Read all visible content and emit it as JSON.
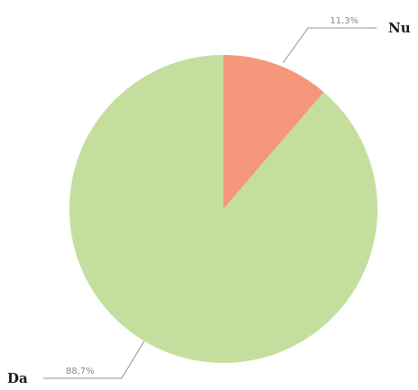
{
  "chart_data": {
    "type": "pie",
    "categories": [
      "Nu",
      "Da"
    ],
    "values": [
      11.3,
      88.7
    ],
    "value_labels": [
      "11,3%",
      "88,7%"
    ],
    "colors": [
      "#f4977a",
      "#c4df9d"
    ],
    "start_angle": "12 o'clock",
    "direction": "clockwise",
    "legend": "none"
  }
}
